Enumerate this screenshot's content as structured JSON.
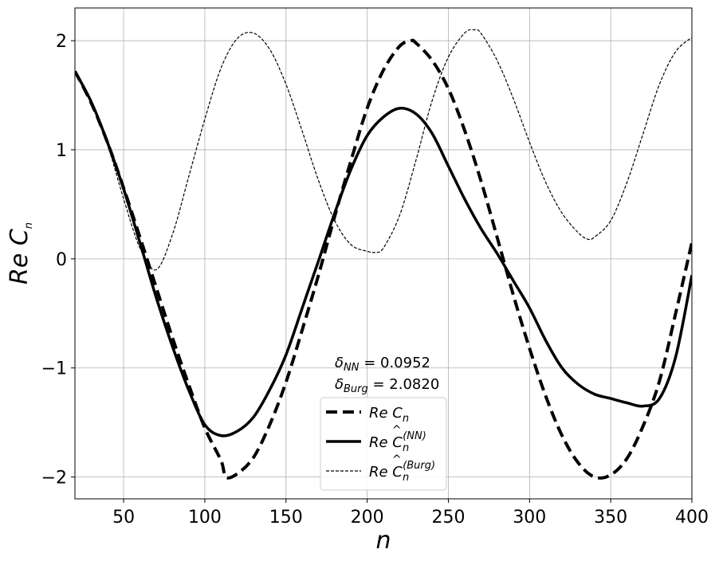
{
  "chart_data": {
    "type": "line",
    "xlabel": "n",
    "ylabel": "Re C_n",
    "xlim": [
      20,
      400
    ],
    "ylim": [
      -2.2,
      2.3
    ],
    "grid": true,
    "legend_placement": "lower-center",
    "x_ticks": [
      50,
      100,
      150,
      200,
      250,
      300,
      350,
      400
    ],
    "x_tick_labels": [
      "50",
      "100",
      "150",
      "200",
      "250",
      "300",
      "350",
      "400"
    ],
    "y_ticks": [
      -2,
      -1,
      0,
      1,
      2
    ],
    "y_tick_labels": [
      "−2",
      "−1",
      "0",
      "1",
      "2"
    ],
    "annotations": [
      {
        "symbol": "δ",
        "subscript": "NN",
        "text": " = 0.0952"
      },
      {
        "symbol": "δ",
        "subscript": "Burg",
        "text": " = 2.0820"
      }
    ],
    "series": [
      {
        "name": "Re C_n",
        "legend": {
          "prefix": "Re C",
          "sub": "n",
          "hat": false,
          "sup": ""
        },
        "style": "dashed-thick",
        "x": [
          20,
          30,
          40,
          50,
          60,
          70,
          80,
          90,
          100,
          110,
          113,
          120,
          130,
          140,
          150,
          160,
          170,
          180,
          190,
          200,
          210,
          220,
          227,
          230,
          240,
          250,
          260,
          270,
          280,
          290,
          300,
          310,
          320,
          330,
          340,
          350,
          360,
          370,
          380,
          390,
          400
        ],
        "y": [
          1.72,
          1.43,
          1.07,
          0.65,
          0.2,
          -0.26,
          -0.72,
          -1.15,
          -1.55,
          -1.85,
          -2.0,
          -1.97,
          -1.82,
          -1.52,
          -1.13,
          -0.65,
          -0.15,
          0.39,
          0.9,
          1.38,
          1.73,
          1.95,
          2.0,
          1.98,
          1.82,
          1.56,
          1.18,
          0.72,
          0.2,
          -0.33,
          -0.82,
          -1.26,
          -1.62,
          -1.87,
          -2.0,
          -1.98,
          -1.83,
          -1.53,
          -1.12,
          -0.5,
          0.15
        ]
      },
      {
        "name": "Re Ĉ_n^(NN)",
        "legend": {
          "prefix": "Re C",
          "sub": "n",
          "hat": true,
          "sup": "(NN)"
        },
        "style": "solid-thick",
        "x": [
          20,
          30,
          40,
          50,
          60,
          70,
          80,
          90,
          100,
          110,
          120,
          130,
          140,
          150,
          160,
          170,
          180,
          190,
          200,
          210,
          220,
          230,
          240,
          250,
          260,
          270,
          280,
          290,
          300,
          310,
          320,
          330,
          340,
          350,
          360,
          370,
          380,
          390,
          400
        ],
        "y": [
          1.72,
          1.44,
          1.07,
          0.64,
          0.15,
          -0.35,
          -0.8,
          -1.2,
          -1.52,
          -1.62,
          -1.58,
          -1.45,
          -1.2,
          -0.88,
          -0.45,
          -0.02,
          0.42,
          0.82,
          1.13,
          1.3,
          1.38,
          1.33,
          1.15,
          0.85,
          0.55,
          0.28,
          0.05,
          -0.2,
          -0.45,
          -0.75,
          -1.0,
          -1.15,
          -1.24,
          -1.28,
          -1.32,
          -1.35,
          -1.28,
          -0.9,
          -0.15
        ]
      },
      {
        "name": "Re Ĉ_n^(Burg)",
        "legend": {
          "prefix": "Re C",
          "sub": "n",
          "hat": true,
          "sup": "(Burg)"
        },
        "style": "dashed-thin",
        "x": [
          20,
          30,
          40,
          50,
          60,
          70,
          80,
          90,
          100,
          110,
          120,
          130,
          140,
          150,
          160,
          170,
          180,
          190,
          200,
          205,
          210,
          220,
          230,
          240,
          250,
          260,
          266,
          270,
          280,
          290,
          300,
          310,
          320,
          330,
          336,
          340,
          350,
          360,
          370,
          380,
          390,
          400
        ],
        "y": [
          1.72,
          1.43,
          1.05,
          0.55,
          0.1,
          -0.1,
          0.22,
          0.75,
          1.28,
          1.75,
          2.02,
          2.07,
          1.92,
          1.6,
          1.17,
          0.72,
          0.35,
          0.13,
          0.07,
          0.06,
          0.1,
          0.4,
          0.9,
          1.45,
          1.85,
          2.07,
          2.1,
          2.07,
          1.82,
          1.47,
          1.07,
          0.7,
          0.42,
          0.24,
          0.18,
          0.2,
          0.35,
          0.7,
          1.15,
          1.6,
          1.9,
          2.03
        ]
      }
    ]
  }
}
